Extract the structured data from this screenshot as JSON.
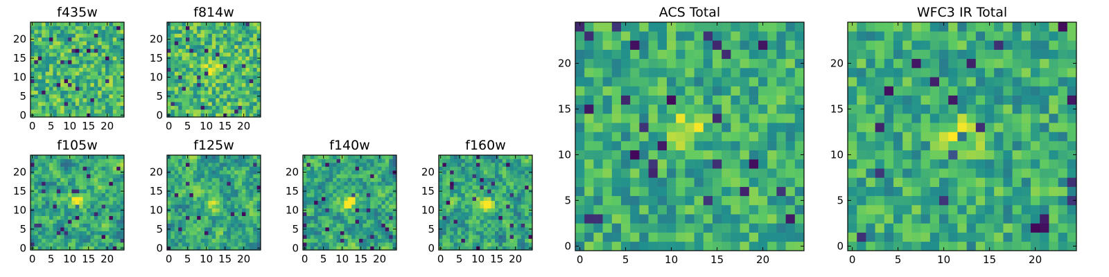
{
  "figure": {
    "background": "#ffffff",
    "colormap": "viridis",
    "colormap_stops": [
      "#440154",
      "#3b528b",
      "#21908d",
      "#5dc963",
      "#fde725"
    ]
  },
  "chart_data": [
    {
      "type": "heatmap",
      "id": "f435w",
      "title": "f435w",
      "grid_size": [
        25,
        25
      ],
      "blob": null,
      "noise_level": "high",
      "seed": 11,
      "xticks": [
        0,
        5,
        10,
        15,
        20
      ],
      "yticks": [
        0,
        5,
        10,
        15,
        20
      ],
      "xlim": [
        -0.5,
        24.5
      ],
      "ylim": [
        -0.5,
        24.5
      ]
    },
    {
      "type": "heatmap",
      "id": "f814w",
      "title": "f814w",
      "grid_size": [
        25,
        25
      ],
      "blob": [
        12,
        12
      ],
      "noise_level": "high",
      "seed": 23,
      "xticks": [
        0,
        5,
        10,
        15,
        20
      ],
      "yticks": [
        0,
        5,
        10,
        15,
        20
      ],
      "xlim": [
        -0.5,
        24.5
      ],
      "ylim": [
        -0.5,
        24.5
      ]
    },
    {
      "type": "heatmap",
      "id": "f105w",
      "title": "f105w",
      "grid_size": [
        25,
        25
      ],
      "blob": [
        12,
        12
      ],
      "noise_level": "smooth",
      "seed": 37,
      "xticks": [
        0,
        5,
        10,
        15,
        20
      ],
      "yticks": [
        0,
        5,
        10,
        15,
        20
      ],
      "xlim": [
        -0.5,
        24.5
      ],
      "ylim": [
        -0.5,
        24.5
      ]
    },
    {
      "type": "heatmap",
      "id": "f125w",
      "title": "f125w",
      "grid_size": [
        25,
        25
      ],
      "blob": [
        12,
        12
      ],
      "noise_level": "smooth",
      "seed": 41,
      "xticks": [
        0,
        5,
        10,
        15,
        20
      ],
      "yticks": [
        0,
        5,
        10,
        15,
        20
      ],
      "xlim": [
        -0.5,
        24.5
      ],
      "ylim": [
        -0.5,
        24.5
      ]
    },
    {
      "type": "heatmap",
      "id": "f140w",
      "title": "f140w",
      "grid_size": [
        25,
        25
      ],
      "blob": [
        12,
        12
      ],
      "noise_level": "smooth",
      "seed": 53,
      "xticks": [
        0,
        5,
        10,
        15,
        20
      ],
      "yticks": [
        0,
        5,
        10,
        15,
        20
      ],
      "xlim": [
        -0.5,
        24.5
      ],
      "ylim": [
        -0.5,
        24.5
      ]
    },
    {
      "type": "heatmap",
      "id": "f160w",
      "title": "f160w",
      "grid_size": [
        25,
        25
      ],
      "blob": [
        12,
        12
      ],
      "noise_level": "smooth",
      "seed": 67,
      "xticks": [
        0,
        5,
        10,
        15,
        20
      ],
      "yticks": [
        0,
        5,
        10,
        15,
        20
      ],
      "xlim": [
        -0.5,
        24.5
      ],
      "ylim": [
        -0.5,
        24.5
      ]
    },
    {
      "type": "heatmap",
      "id": "acs-total",
      "title": "ACS Total",
      "grid_size": [
        25,
        25
      ],
      "blob": [
        12,
        13
      ],
      "noise_level": "medium",
      "seed": 79,
      "xticks": [
        0,
        5,
        10,
        15,
        20
      ],
      "yticks": [
        0,
        5,
        10,
        15,
        20
      ],
      "xlim": [
        -0.5,
        24.5
      ],
      "ylim": [
        -0.5,
        24.5
      ]
    },
    {
      "type": "heatmap",
      "id": "wfc3-ir-total",
      "title": "WFC3 IR Total",
      "grid_size": [
        25,
        25
      ],
      "blob": [
        12,
        12
      ],
      "noise_level": "medium",
      "seed": 97,
      "xticks": [
        0,
        5,
        10,
        15,
        20
      ],
      "yticks": [
        0,
        5,
        10,
        15,
        20
      ],
      "xlim": [
        -0.5,
        24.5
      ],
      "ylim": [
        -0.5,
        24.5
      ]
    }
  ]
}
